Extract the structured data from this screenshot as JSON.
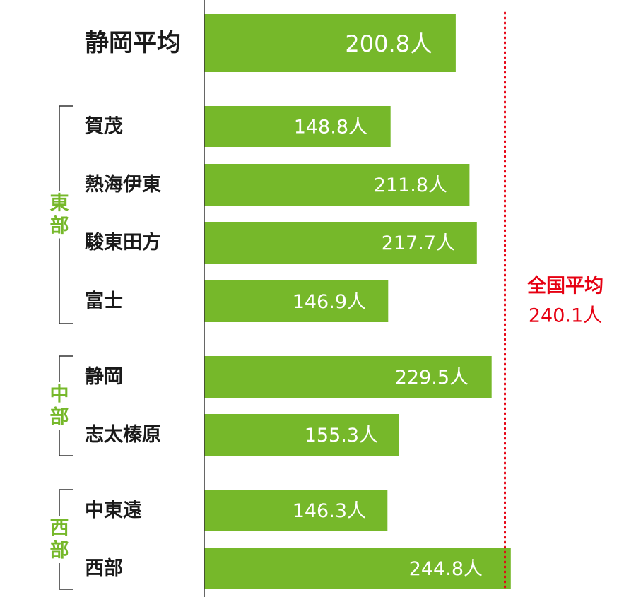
{
  "chart_data": {
    "type": "bar",
    "orientation": "horizontal",
    "unit": "人",
    "categories": [
      "静岡平均",
      "賀茂",
      "熱海伊東",
      "駿東田方",
      "富士",
      "静岡",
      "志太榛原",
      "中東遠",
      "西部"
    ],
    "values": [
      200.8,
      148.8,
      211.8,
      217.7,
      146.9,
      229.5,
      155.3,
      146.3,
      244.8
    ],
    "value_labels": [
      "200.8人",
      "148.8人",
      "211.8人",
      "217.7人",
      "146.9人",
      "229.5人",
      "155.3人",
      "146.3人",
      "244.8人"
    ],
    "groups": [
      {
        "label": "東部",
        "categories": [
          "賀茂",
          "熱海伊東",
          "駿東田方",
          "富士"
        ]
      },
      {
        "label": "中部",
        "categories": [
          "静岡",
          "志太榛原"
        ]
      },
      {
        "label": "西部",
        "categories": [
          "中東遠",
          "西部"
        ]
      }
    ],
    "reference_line": {
      "label": "全国平均",
      "value": 240.1,
      "value_label": "240.1人",
      "style": "dotted",
      "color": "#e60012"
    },
    "xlim": [
      0,
      250
    ],
    "grid": false,
    "legend": "none"
  },
  "colors": {
    "bar": "#76b82a",
    "group_label": "#76b82a",
    "reference": "#e60012",
    "highlight_value": "#ffff00",
    "value_text": "#ffffff",
    "category_text": "#1a1a1a",
    "axis": "#333333"
  }
}
